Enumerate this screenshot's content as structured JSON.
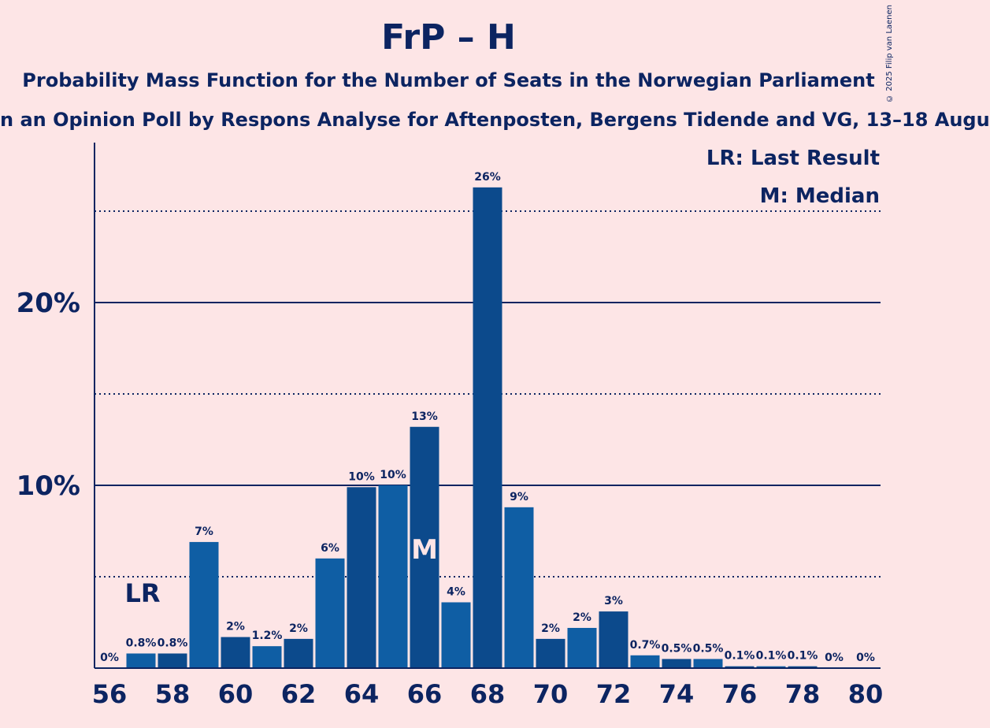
{
  "chart_data": {
    "type": "bar",
    "title": "FrP – H",
    "subtitle": "Probability Mass Function for the Number of Seats in the Norwegian Parliament",
    "subtitle2": "n an Opinion Poll by Respons Analyse for Aftenposten, Bergens Tidende and VG, 13–18 Augu",
    "copyright": "© 2025 Filip van Laenen",
    "legend": [
      "LR: Last Result",
      "M: Median"
    ],
    "last_result_label": "LR",
    "median_label": "M",
    "last_result_seat": 57,
    "median_seat": 66,
    "categories": [
      56,
      57,
      58,
      59,
      60,
      61,
      62,
      63,
      64,
      65,
      66,
      67,
      68,
      69,
      70,
      71,
      72,
      73,
      74,
      75,
      76,
      77,
      78,
      79,
      80
    ],
    "values": [
      0,
      0.8,
      0.8,
      6.9,
      1.7,
      1.2,
      1.6,
      6.0,
      9.9,
      10.0,
      13.2,
      3.6,
      26.3,
      8.8,
      1.6,
      2.2,
      3.1,
      0.7,
      0.5,
      0.5,
      0.1,
      0.1,
      0.1,
      0,
      0
    ],
    "labels": [
      "0%",
      "0.8%",
      "0.8%",
      "7%",
      "2%",
      "1.2%",
      "2%",
      "6%",
      "10%",
      "10%",
      "13%",
      "4%",
      "26%",
      "9%",
      "2%",
      "2%",
      "3%",
      "0.7%",
      "0.5%",
      "0.5%",
      "0.1%",
      "0.1%",
      "0.1%",
      "0%",
      "0%"
    ],
    "x_tick_labels": [
      "56",
      "58",
      "60",
      "62",
      "64",
      "66",
      "68",
      "70",
      "72",
      "74",
      "76",
      "78",
      "80"
    ],
    "y_tick_labels": [
      "10%",
      "20%"
    ],
    "y_major_ticks": [
      10,
      20
    ],
    "y_minor_ticks": [
      5,
      15,
      25
    ],
    "ylim": [
      0,
      28.7
    ],
    "colors": {
      "bar_dark": "#0c4a8c",
      "bar_light": "#0f5ea4",
      "axis": "#0c2461",
      "background": "#fde5e6",
      "median_text": "#fde5e6"
    }
  }
}
